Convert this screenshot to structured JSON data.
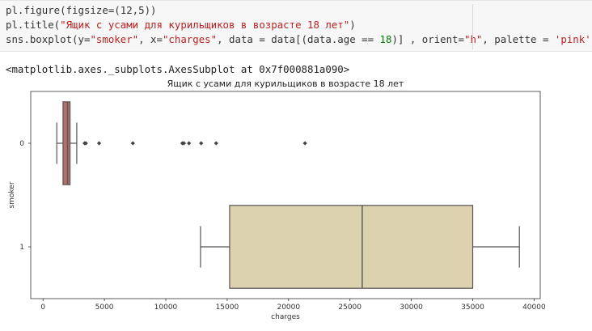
{
  "code": {
    "line1": "pl.figure(figsize=(12,5))",
    "line2_pre": "pl.title(",
    "line2_str": "\"Ящик с усами для курильщиков в возрасте 18 лет\"",
    "line2_post": ")",
    "line3_a": "sns.boxplot(y=",
    "line3_b": "\"smoker\"",
    "line3_c": ", x=",
    "line3_d": "\"charges\"",
    "line3_e": ", data = data[(data.age == ",
    "line3_f": "18",
    "line3_g": ")] , orient=",
    "line3_h": "\"h\"",
    "line3_i": ", palette = ",
    "line3_j": "'pink'",
    "line3_k": ")"
  },
  "output": {
    "repr": "<matplotlib.axes._subplots.AxesSubplot at 0x7f000881a090>"
  },
  "chart_data": {
    "type": "boxplot",
    "orientation": "horizontal",
    "title": "Ящик с усами для курильщиков в возрасте 18 лет",
    "xlabel": "charges",
    "ylabel": "smoker",
    "xlim": [
      -1000,
      40500
    ],
    "x_ticks": [
      0,
      5000,
      10000,
      15000,
      20000,
      25000,
      30000,
      35000,
      40000
    ],
    "categories": [
      "0",
      "1"
    ],
    "series": [
      {
        "name": "0",
        "whisker_low": 1120,
        "q1": 1630,
        "median": 2000,
        "q3": 2200,
        "whisker_high": 2750,
        "outliers": [
          3390,
          3490,
          4570,
          7320,
          11350,
          11480,
          11890,
          12880,
          14100,
          21340
        ],
        "color": "#b4706f"
      },
      {
        "name": "1",
        "whisker_low": 12830,
        "q1": 15200,
        "median": 26000,
        "q3": 35000,
        "whisker_high": 38800,
        "outliers": [],
        "color": "#dcd2af"
      }
    ],
    "grid": false
  }
}
